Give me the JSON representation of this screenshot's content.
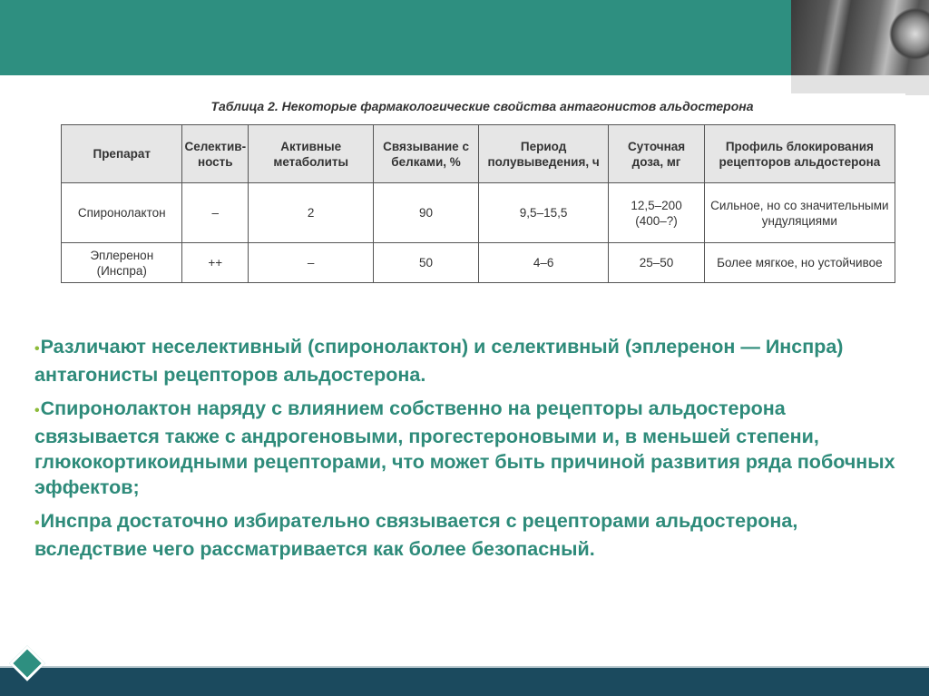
{
  "colors": {
    "header": "#2e8f80",
    "text": "#2e8b7a",
    "bullet": "#8dbb3a",
    "footer": "#1b4a5e"
  },
  "table": {
    "caption": "Таблица 2. Некоторые фармакологические свойства антагонистов альдостерона",
    "headers": [
      "Препарат",
      "Селектив-ность",
      "Активные метаболиты",
      "Связывание с белками, %",
      "Период полувыведения, ч",
      "Суточная доза, мг",
      "Профиль блокирования рецепторов альдостерона"
    ],
    "rows": [
      [
        "Спиронолактон",
        "–",
        "2",
        "90",
        "9,5–15,5",
        "12,5–200 (400–?)",
        "Сильное, но со значительными ундуляциями"
      ],
      [
        "Эплеренон (Инспра)",
        "++",
        "–",
        "50",
        "4–6",
        "25–50",
        "Более мягкое, но устойчивое"
      ]
    ]
  },
  "bullets": [
    "Различают неселективный (спиронолактон) и селективный (эплеренон — Инспра) антагонисты рецепторов альдостерона.",
    "Спиронолактон наряду с влиянием собственно на рецепторы альдостерона связывается также с андрогеновыми, прогестероновыми и, в меньшей степени, глюкокортикоидными рецепторами, что может быть причиной развития ряда побочных эффектов;",
    "Инспра достаточно избирательно связывается с рецепторами альдостерона, вследствие чего рассматривается как более безопасный."
  ]
}
